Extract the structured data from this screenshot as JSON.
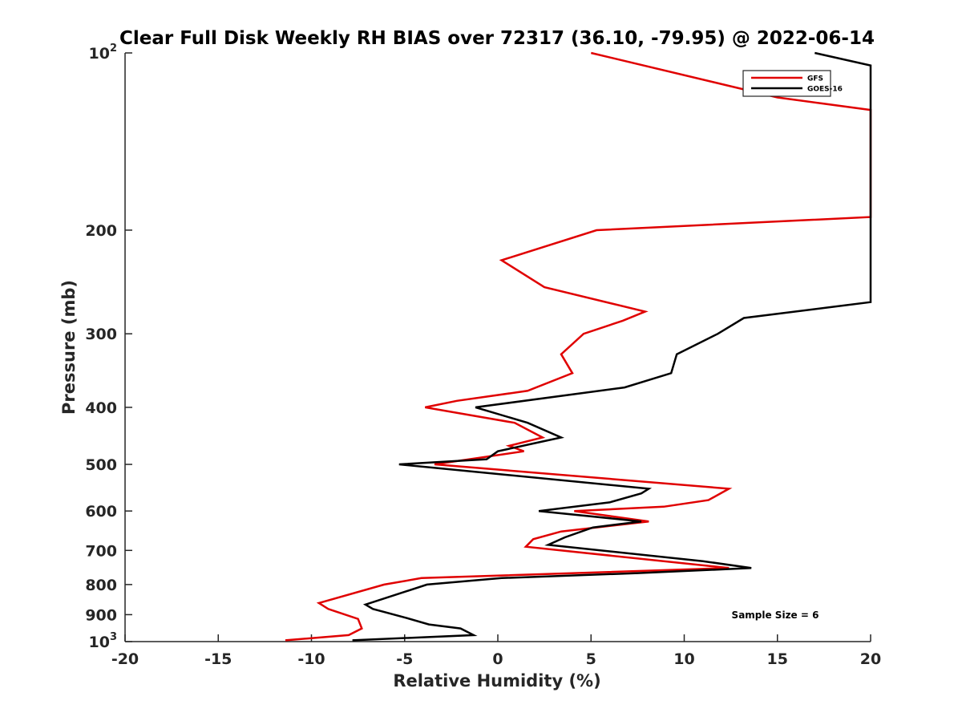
{
  "chart_data": {
    "type": "line",
    "title": "Clear Full Disk Weekly RH BIAS over 72317 (36.10, -79.95) @ 2022-06-14",
    "xlabel": "Relative Humidity (%)",
    "ylabel": "Pressure (mb)",
    "xlim": [
      -20,
      20
    ],
    "ylim": [
      100,
      1000
    ],
    "y_scale": "log",
    "y_reversed": true,
    "x_ticks": [
      "-20",
      "-15",
      "-10",
      "-5",
      "0",
      "5",
      "10",
      "15",
      "20"
    ],
    "x_tick_values": [
      -20,
      -15,
      -10,
      -5,
      0,
      5,
      10,
      15,
      20
    ],
    "y_ticks": [
      {
        "value": 100,
        "base": "10",
        "exp": "2"
      },
      {
        "value": 200,
        "label": "200"
      },
      {
        "value": 300,
        "label": "300"
      },
      {
        "value": 400,
        "label": "400"
      },
      {
        "value": 500,
        "label": "500"
      },
      {
        "value": 600,
        "label": "600"
      },
      {
        "value": 700,
        "label": "700"
      },
      {
        "value": 800,
        "label": "800"
      },
      {
        "value": 900,
        "label": "900"
      },
      {
        "value": 1000,
        "base": "10",
        "exp": "3"
      }
    ],
    "grid": false,
    "legend_position": "top-right",
    "annotation": "Sample Size = 6",
    "series": [
      {
        "name": "GFS",
        "color": "#e00000",
        "points": [
          [
            5.0,
            100
          ],
          [
            15.0,
            119
          ],
          [
            20.0,
            125
          ],
          [
            20.0,
            190
          ],
          [
            5.3,
            200
          ],
          [
            0.2,
            225
          ],
          [
            2.5,
            250
          ],
          [
            7.9,
            275
          ],
          [
            6.7,
            285
          ],
          [
            4.6,
            300
          ],
          [
            3.4,
            325
          ],
          [
            4.0,
            350
          ],
          [
            1.6,
            375
          ],
          [
            -2.2,
            390
          ],
          [
            -3.9,
            400
          ],
          [
            0.9,
            425
          ],
          [
            2.4,
            450
          ],
          [
            0.6,
            465
          ],
          [
            1.4,
            475
          ],
          [
            -3.4,
            500
          ],
          [
            12.4,
            550
          ],
          [
            11.3,
            575
          ],
          [
            8.9,
            590
          ],
          [
            4.1,
            600
          ],
          [
            8.1,
            625
          ],
          [
            3.4,
            650
          ],
          [
            1.9,
            670
          ],
          [
            1.5,
            690
          ],
          [
            12.4,
            750
          ],
          [
            -4.1,
            780
          ],
          [
            -6.1,
            800
          ],
          [
            -9.6,
            860
          ],
          [
            -9.1,
            880
          ],
          [
            -7.5,
            915
          ],
          [
            -7.3,
            950
          ],
          [
            -8.0,
            975
          ],
          [
            -11.4,
            995
          ]
        ]
      },
      {
        "name": "GOES-16",
        "color": "#000000",
        "points": [
          [
            17.0,
            100
          ],
          [
            20.0,
            105
          ],
          [
            20.0,
            265
          ],
          [
            13.2,
            282
          ],
          [
            11.8,
            300
          ],
          [
            9.6,
            325
          ],
          [
            9.3,
            350
          ],
          [
            6.8,
            370
          ],
          [
            -1.2,
            400
          ],
          [
            1.6,
            425
          ],
          [
            3.4,
            450
          ],
          [
            2.0,
            460
          ],
          [
            0.0,
            475
          ],
          [
            -0.6,
            490
          ],
          [
            -5.3,
            500
          ],
          [
            8.1,
            550
          ],
          [
            7.7,
            560
          ],
          [
            6.0,
            580
          ],
          [
            2.2,
            600
          ],
          [
            7.7,
            625
          ],
          [
            5.1,
            640
          ],
          [
            3.6,
            665
          ],
          [
            2.7,
            685
          ],
          [
            11.0,
            730
          ],
          [
            13.6,
            750
          ],
          [
            7.5,
            765
          ],
          [
            0.2,
            780
          ],
          [
            -3.8,
            800
          ],
          [
            -7.1,
            865
          ],
          [
            -6.7,
            880
          ],
          [
            -5.0,
            910
          ],
          [
            -3.7,
            935
          ],
          [
            -2.0,
            950
          ],
          [
            -1.3,
            975
          ],
          [
            -7.8,
            995
          ]
        ]
      }
    ]
  }
}
